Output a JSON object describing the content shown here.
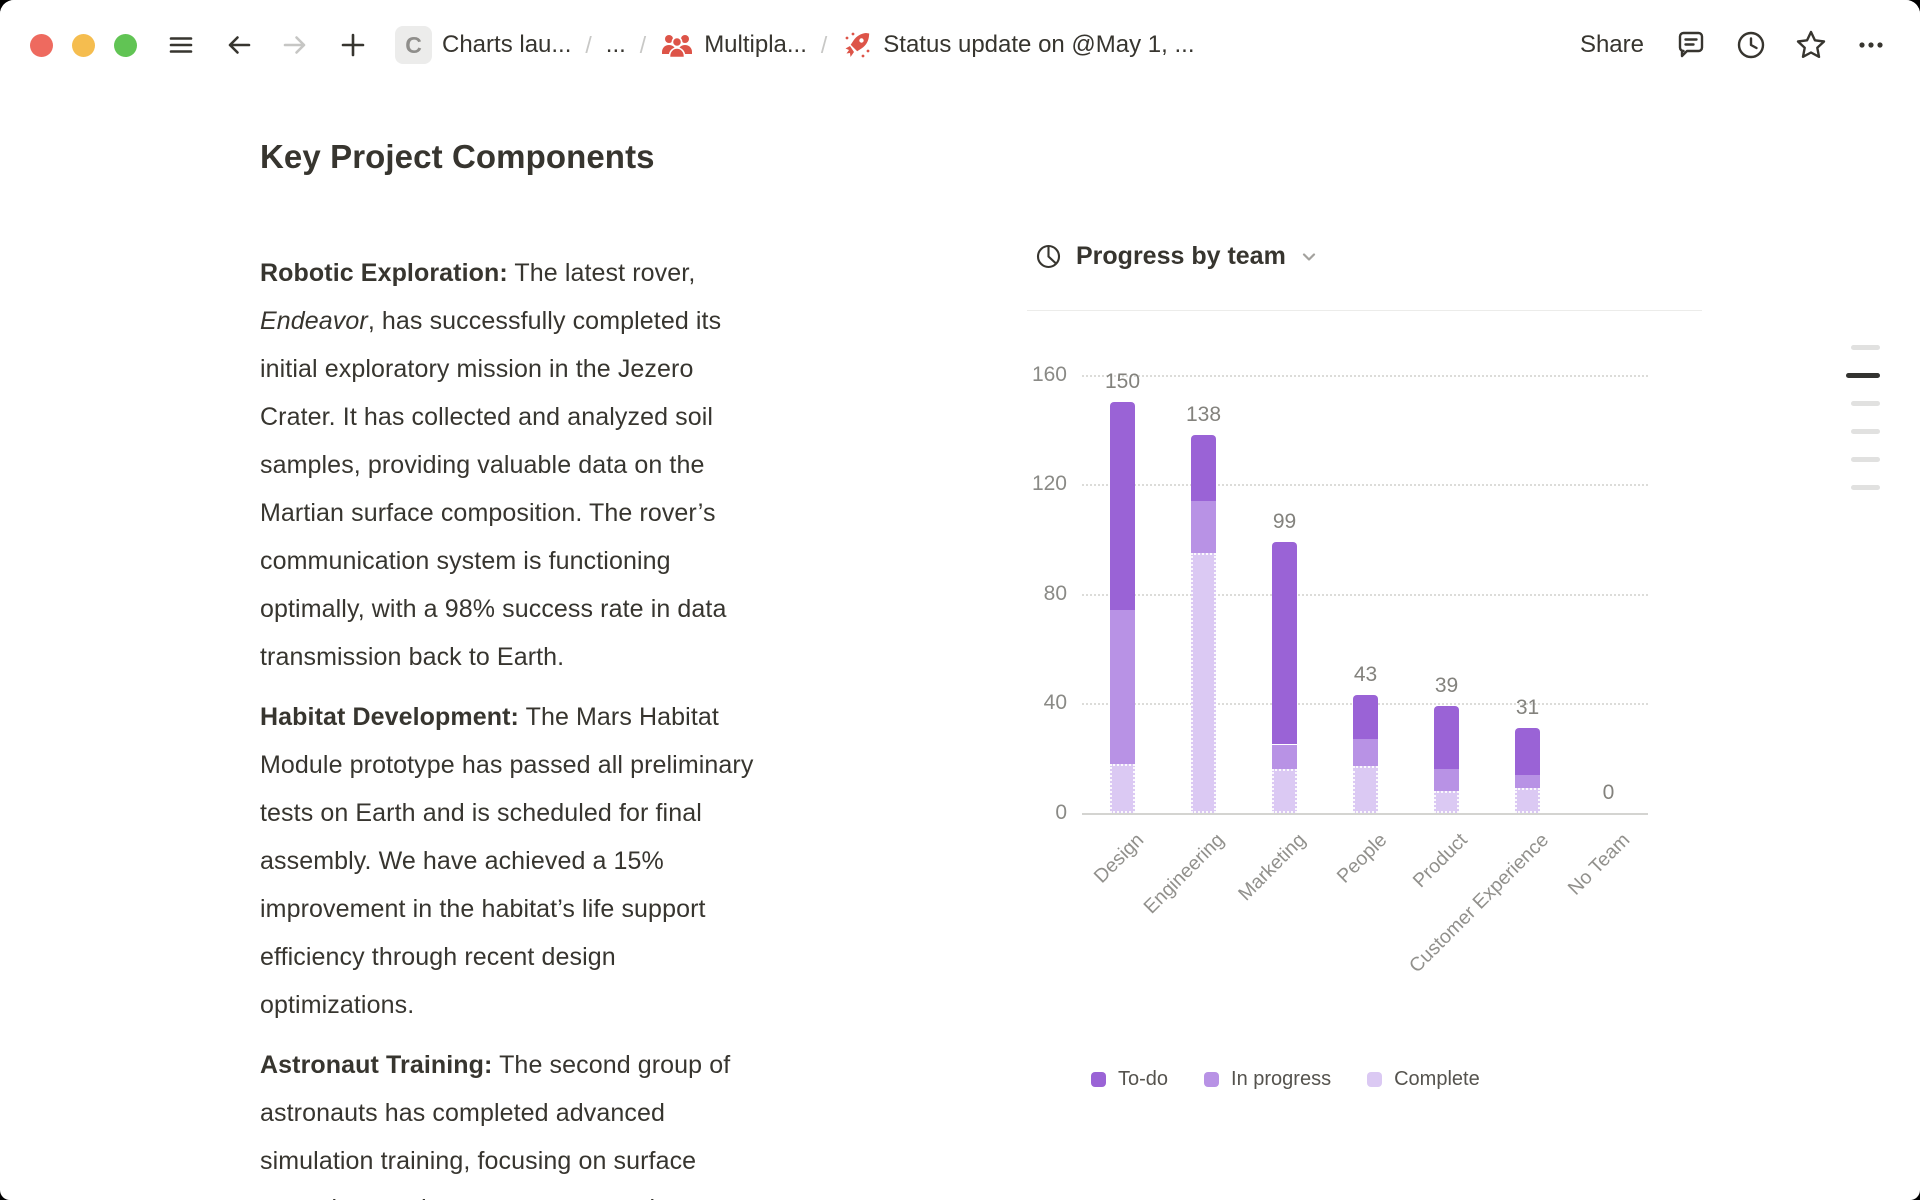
{
  "window": {
    "titlebar": {
      "traffic_lights": [
        {
          "name": "close",
          "color": "#ee6a5f"
        },
        {
          "name": "minimize",
          "color": "#f5bd4f"
        },
        {
          "name": "zoom",
          "color": "#61c454"
        }
      ],
      "breadcrumb": {
        "separator": "/",
        "items": [
          {
            "badge": "C",
            "label": "Charts lau..."
          },
          {
            "label": "..."
          },
          {
            "icon": "people-icon",
            "label": "Multipla..."
          },
          {
            "icon": "rocket-icon",
            "label": "Status update on @May 1, ..."
          }
        ]
      },
      "share_label": "Share"
    }
  },
  "doc": {
    "title": "Key Project Components",
    "paragraphs": [
      {
        "lines": [
          [
            {
              "b": "Robotic Exploration:"
            },
            {
              "t": " The latest rover,"
            }
          ],
          [
            {
              "i": "Endeavor"
            },
            {
              "t": ", has successfully completed its"
            }
          ],
          [
            {
              "t": "initial exploratory mission in the Jezero"
            }
          ],
          [
            {
              "t": "Crater. It has collected and analyzed soil"
            }
          ],
          [
            {
              "t": "samples, providing valuable data on the"
            }
          ],
          [
            {
              "t": "Martian surface composition. The rover’s"
            }
          ],
          [
            {
              "t": "communication system is functioning"
            }
          ],
          [
            {
              "t": "optimally, with a 98% success rate in data"
            }
          ],
          [
            {
              "t": "transmission back to Earth."
            }
          ]
        ]
      },
      {
        "lines": [
          [
            {
              "b": "Habitat Development:"
            },
            {
              "t": " The Mars Habitat"
            }
          ],
          [
            {
              "t": "Module prototype has passed all preliminary"
            }
          ],
          [
            {
              "t": "tests on Earth and is scheduled for final"
            }
          ],
          [
            {
              "t": "assembly. We have achieved a 15%"
            }
          ],
          [
            {
              "t": "improvement in the habitat’s life support"
            }
          ],
          [
            {
              "t": "efficiency through recent design"
            }
          ],
          [
            {
              "t": "optimizations."
            }
          ]
        ]
      },
      {
        "lines": [
          [
            {
              "b": "Astronaut Training:"
            },
            {
              "t": " The second group of"
            }
          ],
          [
            {
              "t": "astronauts has completed advanced"
            }
          ],
          [
            {
              "t": "simulation training, focusing on surface"
            }
          ],
          [
            {
              "t": "operations and emergency protocols"
            }
          ]
        ]
      }
    ]
  },
  "chart": {
    "header_title": "Progress by team"
  },
  "chart_data": {
    "type": "bar",
    "stacked": true,
    "title": "Progress by team",
    "categories": [
      "Design",
      "Engineering",
      "Marketing",
      "People",
      "Product",
      "Customer Experience",
      "No Team"
    ],
    "series": [
      {
        "name": "To-do",
        "color": "#9a63d6",
        "values": [
          76,
          24,
          74,
          16,
          23,
          17,
          0
        ]
      },
      {
        "name": "In progress",
        "color": "#b892e5",
        "values": [
          56,
          19,
          9,
          10,
          8,
          5,
          0
        ]
      },
      {
        "name": "Complete",
        "color": "#dbc9f3",
        "values": [
          18,
          95,
          16,
          17,
          8,
          9,
          0
        ]
      }
    ],
    "stack_order_bottom_to_top": [
      "Complete",
      "In progress",
      "To-do"
    ],
    "totals": [
      150,
      138,
      99,
      43,
      39,
      31,
      0
    ],
    "y_ticks": [
      0,
      40,
      80,
      120,
      160
    ],
    "ylim": [
      0,
      160
    ],
    "xlabel": "",
    "ylabel": "",
    "grid": "dotted-horizontal",
    "legend_position": "bottom",
    "x_label_rotation": -45
  },
  "outline_indicator": [
    "light",
    "dark",
    "light",
    "light",
    "light",
    "light"
  ]
}
